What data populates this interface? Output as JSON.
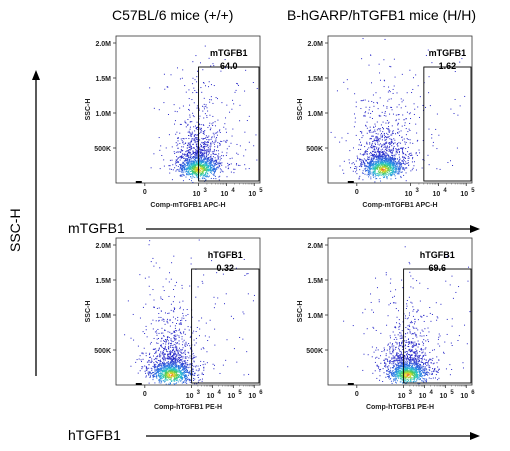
{
  "figure": {
    "col_titles": [
      "C57BL/6 mice (+/+)",
      "B-hGARP/hTGFB1 mice (H/H)"
    ],
    "row_labels": [
      "mTGFB1",
      "hTGFB1"
    ],
    "side_label": "SSC-H"
  },
  "chart_data": [
    {
      "type": "scatter",
      "gate_label": "mTGFB1",
      "gate_value": "64.0",
      "ylabel": "SSC-H",
      "xlabel": "Comp-mTGFB1 APC-H",
      "yticks": [
        "2.0M",
        "1.5M",
        "1.0M",
        "500K"
      ],
      "xtick_labels": [
        "0",
        "10",
        "3",
        "10",
        "4",
        "10",
        "5"
      ],
      "x_scale": "biexponential",
      "gate_x_start": 1000,
      "population": {
        "x_center": 1000,
        "y_center": 200000
      }
    },
    {
      "type": "scatter",
      "gate_label": "mTGFB1",
      "gate_value": "1.62",
      "ylabel": "SSC-H",
      "xlabel": "Comp-mTGFB1 APC-H",
      "yticks": [
        "2.0M",
        "1.5M",
        "1.0M",
        "500K"
      ],
      "xtick_labels": [
        "0",
        "10",
        "3",
        "10",
        "4",
        "10",
        "5"
      ],
      "x_scale": "biexponential",
      "gate_x_start": 3000,
      "population": {
        "x_center": 100,
        "y_center": 200000
      }
    },
    {
      "type": "scatter",
      "gate_label": "hTGFB1",
      "gate_value": "0.32",
      "ylabel": "SSC-H",
      "xlabel": "Comp-hTGFB1 PE-H",
      "yticks": [
        "2.0M",
        "1.5M",
        "1.0M",
        "500K"
      ],
      "xtick_labels": [
        "0",
        "10",
        "3",
        "10",
        "4",
        "10",
        "5",
        "10",
        "6"
      ],
      "x_scale": "biexponential",
      "gate_x_start": 1000,
      "population": {
        "x_center": 100,
        "y_center": 150000
      }
    },
    {
      "type": "scatter",
      "gate_label": "hTGFB1",
      "gate_value": "69.6",
      "ylabel": "SSC-H",
      "xlabel": "Comp-hTGFB1 PE-H",
      "yticks": [
        "2.0M",
        "1.5M",
        "1.0M",
        "500K"
      ],
      "xtick_labels": [
        "0",
        "10",
        "3",
        "10",
        "4",
        "10",
        "5",
        "10",
        "6"
      ],
      "x_scale": "biexponential",
      "gate_x_start": 1000,
      "population": {
        "x_center": 1500,
        "y_center": 150000
      }
    }
  ]
}
